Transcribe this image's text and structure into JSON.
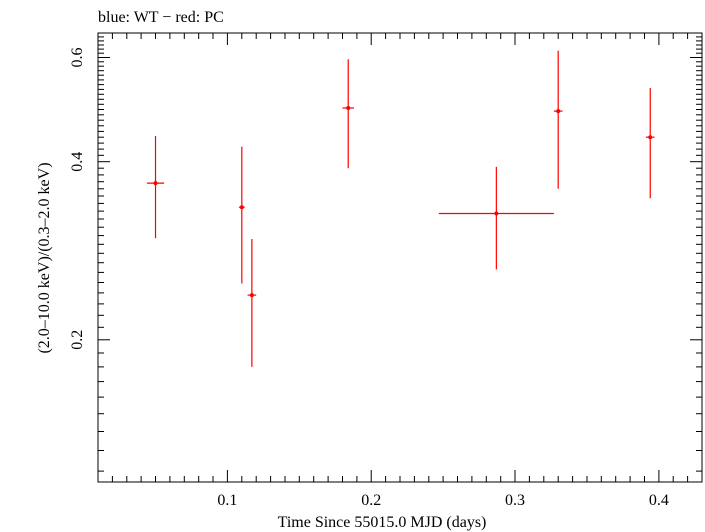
{
  "chart_data": {
    "type": "scatter",
    "title": "blue: WT − red: PC",
    "xlabel": "Time Since 55015.0 MJD (days)",
    "ylabel": "(2.0–10.0 keV)/(0.3–2.0 keV)",
    "xlim": [
      0.01,
      0.43
    ],
    "ylim": [
      0.115,
      0.66
    ],
    "log_y": true,
    "grid": false,
    "x_ticks": [
      {
        "value": 0.1,
        "label": "0.1"
      },
      {
        "value": 0.2,
        "label": "0.2"
      },
      {
        "value": 0.3,
        "label": "0.3"
      },
      {
        "value": 0.4,
        "label": "0.4"
      }
    ],
    "y_ticks": [
      {
        "value": 0.2,
        "label": "0.2"
      },
      {
        "value": 0.4,
        "label": "0.4"
      },
      {
        "value": 0.6,
        "label": "0.6"
      }
    ],
    "series": [
      {
        "color": "#ff0000",
        "points": [
          {
            "x": 0.05,
            "xerr": 0.006,
            "y": 0.368,
            "ylo": 0.297,
            "yhi": 0.442
          },
          {
            "x": 0.11,
            "xerr": 0.002,
            "y": 0.335,
            "ylo": 0.249,
            "yhi": 0.424
          },
          {
            "x": 0.117,
            "xerr": 0.003,
            "y": 0.238,
            "ylo": 0.18,
            "yhi": 0.296
          },
          {
            "x": 0.184,
            "xerr": 0.004,
            "y": 0.493,
            "ylo": 0.39,
            "yhi": 0.596
          },
          {
            "x": 0.287,
            "xerr": 0.04,
            "y": 0.327,
            "ylo": 0.263,
            "yhi": 0.392
          },
          {
            "x": 0.33,
            "xerr": 0.003,
            "y": 0.487,
            "ylo": 0.36,
            "yhi": 0.616
          },
          {
            "x": 0.394,
            "xerr": 0.003,
            "y": 0.44,
            "ylo": 0.347,
            "yhi": 0.533
          }
        ]
      }
    ]
  }
}
